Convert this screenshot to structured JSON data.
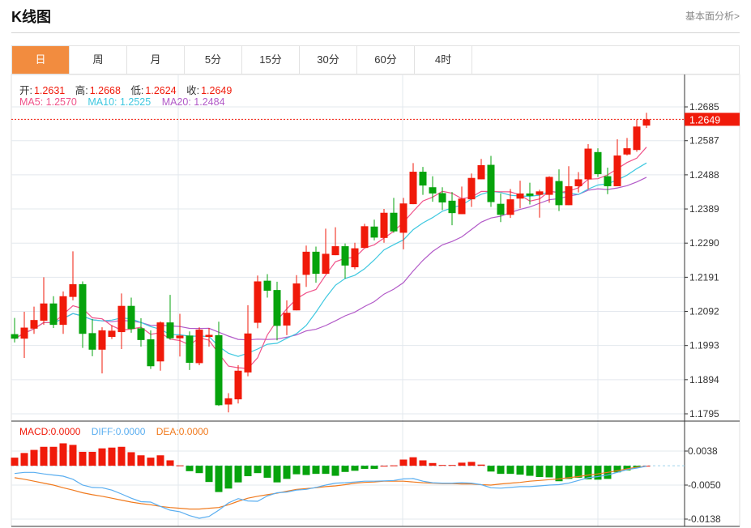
{
  "header": {
    "title": "K线图",
    "link": "基本面分析>"
  },
  "tabs": [
    {
      "label": "日",
      "active": true
    },
    {
      "label": "周"
    },
    {
      "label": "月"
    },
    {
      "label": "5分"
    },
    {
      "label": "15分"
    },
    {
      "label": "30分"
    },
    {
      "label": "60分"
    },
    {
      "label": "4时"
    }
  ],
  "ohlc_info": {
    "open_label": "开:",
    "open": "1.2631",
    "high_label": "高:",
    "high": "1.2668",
    "low_label": "低:",
    "low": "1.2624",
    "close_label": "收:",
    "close": "1.2649"
  },
  "ma_info": {
    "ma5": "MA5: 1.2570",
    "ma10": "MA10: 1.2525",
    "ma20": "MA20: 1.2484"
  },
  "macd_info": {
    "macd": "MACD:0.0000",
    "diff": "DIFF:0.0000",
    "dea": "DEA:0.0000"
  },
  "colors": {
    "up": "#f01a0a",
    "down": "#06a30c",
    "ma5": "#f0538a",
    "ma10": "#3ec8e0",
    "ma20": "#b25ac8",
    "diff": "#5aaef0",
    "dea": "#f07a1e",
    "accent": "#f28c3f"
  },
  "chart_data": {
    "type": "candlestick",
    "current_price": 1.2649,
    "current_price_label": "1.2649",
    "price_axis": {
      "ticks": [
        "1.2685",
        "1.2587",
        "1.2488",
        "1.2389",
        "1.2290",
        "1.2191",
        "1.2092",
        "1.1993",
        "1.1894",
        "1.1795"
      ],
      "range": [
        1.1795,
        1.2685
      ]
    },
    "macd_axis": {
      "ticks": [
        "0.0038",
        "-0.0050",
        "-0.0138"
      ],
      "range": [
        -0.0138,
        0.0038
      ]
    },
    "candles": [
      [
        1.2026,
        1.2073,
        1.2002,
        1.2013
      ],
      [
        1.2013,
        1.2091,
        1.1957,
        1.2045
      ],
      [
        1.2042,
        1.2106,
        1.2027,
        1.2067
      ],
      [
        1.2065,
        1.2191,
        1.2053,
        1.2115
      ],
      [
        1.2115,
        1.2136,
        1.2044,
        1.2053
      ],
      [
        1.2053,
        1.215,
        1.2027,
        1.2136
      ],
      [
        1.2134,
        1.2266,
        1.2124,
        1.2171
      ],
      [
        1.2171,
        1.2179,
        1.1986,
        1.2027
      ],
      [
        1.2029,
        1.207,
        1.1962,
        1.1981
      ],
      [
        1.1981,
        1.2046,
        1.1912,
        1.2037
      ],
      [
        1.2018,
        1.2052,
        1.2012,
        1.2036
      ],
      [
        1.2032,
        1.2144,
        1.1983,
        1.2108
      ],
      [
        1.2108,
        1.2132,
        1.203,
        1.2041
      ],
      [
        1.2043,
        1.2072,
        1.199,
        1.2009
      ],
      [
        1.2011,
        1.2037,
        1.1925,
        1.1933
      ],
      [
        1.1947,
        1.2063,
        1.192,
        1.206
      ],
      [
        1.206,
        1.214,
        1.201,
        1.2014
      ],
      [
        1.2014,
        1.2085,
        1.1961,
        1.2022
      ],
      [
        1.2022,
        1.2034,
        1.1922,
        1.1943
      ],
      [
        1.1942,
        1.2046,
        1.1936,
        1.2039
      ],
      [
        1.2018,
        1.2044,
        1.199,
        1.2024
      ],
      [
        1.2023,
        1.2062,
        1.1818,
        1.182
      ],
      [
        1.1822,
        1.1855,
        1.1799,
        1.184
      ],
      [
        1.1837,
        1.1936,
        1.1825,
        1.192
      ],
      [
        1.1915,
        1.211,
        1.1904,
        1.2028
      ],
      [
        1.2059,
        1.2196,
        1.2043,
        1.2179
      ],
      [
        1.2181,
        1.22,
        1.2132,
        1.2152
      ],
      [
        1.2154,
        1.2178,
        1.2008,
        1.205
      ],
      [
        1.2051,
        1.2124,
        1.2023,
        1.2088
      ],
      [
        1.2095,
        1.2197,
        1.2095,
        1.2173
      ],
      [
        1.2198,
        1.2283,
        1.2163,
        1.2265
      ],
      [
        1.2265,
        1.228,
        1.2175,
        1.2201
      ],
      [
        1.2201,
        1.2332,
        1.2201,
        1.2259
      ],
      [
        1.2255,
        1.2336,
        1.2255,
        1.2281
      ],
      [
        1.2281,
        1.2289,
        1.2187,
        1.2225
      ],
      [
        1.222,
        1.2291,
        1.2214,
        1.2275
      ],
      [
        1.2276,
        1.2346,
        1.2276,
        1.2339
      ],
      [
        1.2338,
        1.2358,
        1.2298,
        1.2306
      ],
      [
        1.2305,
        1.2389,
        1.2291,
        1.2378
      ],
      [
        1.2378,
        1.2421,
        1.232,
        1.2324
      ],
      [
        1.232,
        1.2421,
        1.2272,
        1.2405
      ],
      [
        1.2403,
        1.2522,
        1.2403,
        1.2497
      ],
      [
        1.2497,
        1.2511,
        1.243,
        1.2457
      ],
      [
        1.2452,
        1.2484,
        1.241,
        1.2434
      ],
      [
        1.2435,
        1.2452,
        1.2386,
        1.2408
      ],
      [
        1.2413,
        1.2438,
        1.2342,
        1.2377
      ],
      [
        1.2374,
        1.2454,
        1.2374,
        1.2419
      ],
      [
        1.2417,
        1.2492,
        1.2395,
        1.2479
      ],
      [
        1.2475,
        1.2534,
        1.2475,
        1.2516
      ],
      [
        1.2517,
        1.2543,
        1.2395,
        1.2409
      ],
      [
        1.2404,
        1.2434,
        1.2351,
        1.2372
      ],
      [
        1.2372,
        1.2447,
        1.2363,
        1.2417
      ],
      [
        1.2419,
        1.2471,
        1.2391,
        1.2434
      ],
      [
        1.2434,
        1.2465,
        1.2402,
        1.2427
      ],
      [
        1.243,
        1.2445,
        1.2364,
        1.244
      ],
      [
        1.243,
        1.2484,
        1.2407,
        1.2482
      ],
      [
        1.247,
        1.2504,
        1.2383,
        1.24
      ],
      [
        1.24,
        1.2513,
        1.24,
        1.2455
      ],
      [
        1.2455,
        1.2496,
        1.2437,
        1.2475
      ],
      [
        1.2475,
        1.2577,
        1.2446,
        1.2564
      ],
      [
        1.2554,
        1.2565,
        1.2482,
        1.249
      ],
      [
        1.2484,
        1.2509,
        1.2432,
        1.2455
      ],
      [
        1.2455,
        1.2591,
        1.2455,
        1.2544
      ],
      [
        1.2547,
        1.2595,
        1.2544,
        1.2565
      ],
      [
        1.256,
        1.2649,
        1.2555,
        1.2628
      ],
      [
        1.2631,
        1.2668,
        1.2624,
        1.2649
      ]
    ],
    "macd_hist": [
      0.0021,
      0.0033,
      0.0041,
      0.0049,
      0.0049,
      0.0058,
      0.0054,
      0.0036,
      0.0036,
      0.0045,
      0.0047,
      0.0049,
      0.0035,
      0.0027,
      0.0021,
      0.0027,
      0.0014,
      0.0001,
      -0.0014,
      -0.0019,
      -0.0042,
      -0.0068,
      -0.0059,
      -0.0043,
      -0.0027,
      -0.0019,
      -0.0031,
      -0.0043,
      -0.0034,
      -0.0022,
      -0.0024,
      -0.0021,
      -0.0021,
      -0.0026,
      -0.0016,
      -0.0013,
      -0.0008,
      -0.0008,
      0.0,
      0.0001,
      0.0016,
      0.0022,
      0.0014,
      0.0007,
      0.0002,
      0.0002,
      0.0008,
      0.001,
      0.0003,
      -0.0015,
      -0.0021,
      -0.0021,
      -0.0023,
      -0.0026,
      -0.0029,
      -0.003,
      -0.004,
      -0.0034,
      -0.0031,
      -0.0035,
      -0.0036,
      -0.0034,
      -0.0017,
      -0.0012,
      -0.0004,
      0.0
    ],
    "diff": [
      -0.002,
      -0.0017,
      -0.0017,
      -0.0021,
      -0.0024,
      -0.0027,
      -0.0035,
      -0.005,
      -0.0056,
      -0.0057,
      -0.0063,
      -0.0073,
      -0.0084,
      -0.0093,
      -0.0094,
      -0.0105,
      -0.0115,
      -0.0119,
      -0.0129,
      -0.0136,
      -0.0131,
      -0.0115,
      -0.0096,
      -0.0085,
      -0.0091,
      -0.0092,
      -0.0078,
      -0.007,
      -0.0068,
      -0.0063,
      -0.0061,
      -0.0056,
      -0.005,
      -0.0045,
      -0.0044,
      -0.0042,
      -0.004,
      -0.004,
      -0.0039,
      -0.0038,
      -0.0034,
      -0.0033,
      -0.004,
      -0.0044,
      -0.0045,
      -0.0045,
      -0.0044,
      -0.0045,
      -0.0049,
      -0.0057,
      -0.0058,
      -0.0056,
      -0.0054,
      -0.0054,
      -0.0052,
      -0.005,
      -0.0049,
      -0.0045,
      -0.0038,
      -0.0031,
      -0.0028,
      -0.0024,
      -0.0017,
      -0.001,
      -0.0006,
      -0.0001
    ],
    "dea": [
      -0.0031,
      -0.0035,
      -0.004,
      -0.0045,
      -0.005,
      -0.0057,
      -0.0063,
      -0.007,
      -0.0075,
      -0.0079,
      -0.0084,
      -0.0089,
      -0.0094,
      -0.0098,
      -0.0101,
      -0.0105,
      -0.0108,
      -0.011,
      -0.0112,
      -0.0112,
      -0.011,
      -0.0108,
      -0.0101,
      -0.0092,
      -0.0084,
      -0.0079,
      -0.0075,
      -0.0071,
      -0.0066,
      -0.0061,
      -0.0059,
      -0.0057,
      -0.0054,
      -0.0052,
      -0.0049,
      -0.0045,
      -0.0043,
      -0.0042,
      -0.004,
      -0.004,
      -0.004,
      -0.0042,
      -0.0044,
      -0.0045,
      -0.0046,
      -0.0046,
      -0.0047,
      -0.0047,
      -0.0049,
      -0.005,
      -0.0047,
      -0.0045,
      -0.0043,
      -0.004,
      -0.0038,
      -0.0036,
      -0.0034,
      -0.0031,
      -0.0028,
      -0.0024,
      -0.0021,
      -0.0017,
      -0.0013,
      -0.0008,
      -0.0004,
      -0.0001
    ]
  }
}
